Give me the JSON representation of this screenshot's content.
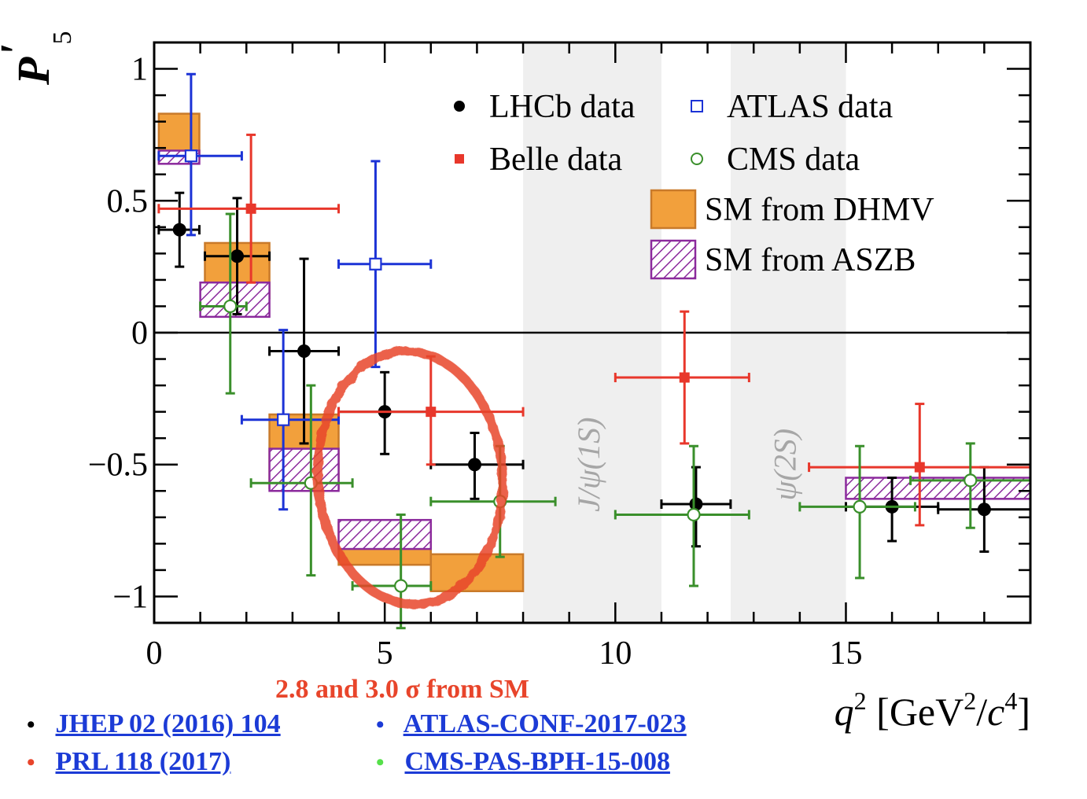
{
  "chart_data": {
    "type": "scatter",
    "title": "",
    "ylabel_main": "P",
    "ylabel_prime": "'",
    "ylabel_sub": "5",
    "xlabel_q": "q",
    "xlabel_sup": "2",
    "xlabel_unit_open": "[GeV",
    "xlabel_unit_sup": "2",
    "xlabel_unit_mid": "/",
    "xlabel_unit_c": "c",
    "xlabel_unit_sup2": "4",
    "xlabel_unit_close": "]",
    "xlim": [
      0,
      19
    ],
    "ylim": [
      -1.1,
      1.1
    ],
    "x_ticks": [
      {
        "value": 0,
        "label": "0"
      },
      {
        "value": 5,
        "label": "5"
      },
      {
        "value": 10,
        "label": "10"
      },
      {
        "value": 15,
        "label": "15"
      }
    ],
    "y_ticks": [
      {
        "value": 1,
        "label": "1"
      },
      {
        "value": 0.5,
        "label": "0.5"
      },
      {
        "value": 0,
        "label": "0"
      },
      {
        "value": -0.5,
        "label": "−0.5"
      },
      {
        "value": -1,
        "label": "−1"
      }
    ],
    "vetoed_regions": [
      {
        "x0": 8.0,
        "x1": 11.0,
        "label": "J/ψ(1S)",
        "label_x": 9.5,
        "label_y": -0.5
      },
      {
        "x0": 12.5,
        "x1": 15.0,
        "label": "ψ(2S)",
        "label_x": 13.75,
        "label_y": -0.5
      }
    ],
    "zero_line": 0,
    "series": [
      {
        "name": "LHCb data",
        "marker": "filled-circle",
        "color": "#000000",
        "points": [
          {
            "x": 0.55,
            "xlo": 0.1,
            "xhi": 0.98,
            "y": 0.39,
            "ylo": 0.25,
            "yhi": 0.53
          },
          {
            "x": 1.8,
            "xlo": 1.1,
            "xhi": 2.5,
            "y": 0.29,
            "ylo": 0.07,
            "yhi": 0.51
          },
          {
            "x": 3.25,
            "xlo": 2.5,
            "xhi": 4.0,
            "y": -0.07,
            "ylo": -0.42,
            "yhi": 0.28
          },
          {
            "x": 5.0,
            "xlo": 4.0,
            "xhi": 6.0,
            "y": -0.3,
            "ylo": -0.46,
            "yhi": -0.15
          },
          {
            "x": 6.95,
            "xlo": 6.0,
            "xhi": 8.0,
            "y": -0.5,
            "ylo": -0.63,
            "yhi": -0.38
          },
          {
            "x": 11.75,
            "xlo": 11.0,
            "xhi": 12.5,
            "y": -0.65,
            "ylo": -0.81,
            "yhi": -0.51
          },
          {
            "x": 16.0,
            "xlo": 15.0,
            "xhi": 17.0,
            "y": -0.66,
            "ylo": -0.79,
            "yhi": -0.55
          },
          {
            "x": 18.0,
            "xlo": 17.0,
            "xhi": 19.0,
            "y": -0.67,
            "ylo": -0.83,
            "yhi": -0.51
          }
        ]
      },
      {
        "name": "ATLAS data",
        "marker": "open-square",
        "color": "#1c33d6",
        "points": [
          {
            "x": 0.8,
            "xlo": 0.1,
            "xhi": 1.9,
            "y": 0.67,
            "ylo": 0.37,
            "yhi": 0.98
          },
          {
            "x": 2.8,
            "xlo": 1.9,
            "xhi": 4.0,
            "y": -0.33,
            "ylo": -0.67,
            "yhi": 0.01
          },
          {
            "x": 4.8,
            "xlo": 4.0,
            "xhi": 6.0,
            "y": 0.26,
            "ylo": -0.13,
            "yhi": 0.65
          }
        ]
      },
      {
        "name": "Belle data",
        "marker": "filled-square",
        "color": "#e8372b",
        "points": [
          {
            "x": 2.1,
            "xlo": 0.1,
            "xhi": 4.0,
            "y": 0.47,
            "ylo": 0.19,
            "yhi": 0.75
          },
          {
            "x": 6.0,
            "xlo": 4.0,
            "xhi": 8.0,
            "y": -0.3,
            "ylo": -0.5,
            "yhi": -0.09
          },
          {
            "x": 11.5,
            "xlo": 10.0,
            "xhi": 12.9,
            "y": -0.17,
            "ylo": -0.42,
            "yhi": 0.08
          },
          {
            "x": 16.6,
            "xlo": 14.2,
            "xhi": 19.0,
            "y": -0.51,
            "ylo": -0.73,
            "yhi": -0.27
          }
        ]
      },
      {
        "name": "CMS data",
        "marker": "open-circle",
        "color": "#3a8f2b",
        "points": [
          {
            "x": 1.65,
            "xlo": 1.0,
            "xhi": 2.0,
            "y": 0.1,
            "ylo": -0.23,
            "yhi": 0.45
          },
          {
            "x": 3.4,
            "xlo": 2.1,
            "xhi": 4.3,
            "y": -0.57,
            "ylo": -0.92,
            "yhi": -0.2
          },
          {
            "x": 5.35,
            "xlo": 4.3,
            "xhi": 6.0,
            "y": -0.96,
            "ylo": -1.12,
            "yhi": -0.69
          },
          {
            "x": 7.5,
            "xlo": 6.0,
            "xhi": 8.7,
            "y": -0.64,
            "ylo": -0.85,
            "yhi": -0.43
          },
          {
            "x": 11.7,
            "xlo": 10.0,
            "xhi": 12.9,
            "y": -0.69,
            "ylo": -0.96,
            "yhi": -0.43
          },
          {
            "x": 15.3,
            "xlo": 14.0,
            "xhi": 16.5,
            "y": -0.66,
            "ylo": -0.93,
            "yhi": -0.43
          },
          {
            "x": 17.7,
            "xlo": 16.4,
            "xhi": 19.0,
            "y": -0.56,
            "ylo": -0.74,
            "yhi": -0.42
          }
        ]
      }
    ],
    "sm_bands": [
      {
        "name": "SM from DHMV",
        "style": "orange-box",
        "color": "#f2a03c",
        "edge": "#c97a2a",
        "bins": [
          {
            "x0": 0.1,
            "x1": 0.98,
            "y0": 0.66,
            "y1": 0.83
          },
          {
            "x0": 1.1,
            "x1": 2.5,
            "y0": 0.13,
            "y1": 0.34
          },
          {
            "x0": 2.5,
            "x1": 4.0,
            "y0": -0.59,
            "y1": -0.31
          },
          {
            "x0": 4.0,
            "x1": 6.0,
            "y0": -0.88,
            "y1": -0.72
          },
          {
            "x0": 6.0,
            "x1": 8.0,
            "y0": -0.98,
            "y1": -0.84
          }
        ]
      },
      {
        "name": "SM from ASZB",
        "style": "purple-hatch",
        "color": "#8b2a9c",
        "edge": "#8b2a9c",
        "bins": [
          {
            "x0": 0.1,
            "x1": 0.98,
            "y0": 0.64,
            "y1": 0.69
          },
          {
            "x0": 1.0,
            "x1": 2.5,
            "y0": 0.06,
            "y1": 0.19
          },
          {
            "x0": 2.5,
            "x1": 4.0,
            "y0": -0.6,
            "y1": -0.44
          },
          {
            "x0": 4.0,
            "x1": 6.0,
            "y0": -0.82,
            "y1": -0.71
          },
          {
            "x0": 15.0,
            "x1": 19.0,
            "y0": -0.63,
            "y1": -0.55
          }
        ]
      }
    ],
    "legend": {
      "placement": "top-right",
      "entries": [
        "LHCb data",
        "ATLAS data",
        "Belle data",
        "CMS data",
        "SM from DHMV",
        "SM from ASZB"
      ]
    },
    "highlight": {
      "shape": "red-ellipse",
      "cx": 5.55,
      "cy": -0.55,
      "rx": 2.0,
      "ry": 0.48,
      "color": "#e8452b"
    }
  },
  "annotation": "2.8 and 3.0 σ from SM",
  "references": [
    {
      "bullet_color": "#000000",
      "text": "JHEP 02 (2016) 104"
    },
    {
      "bullet_color": "#e8452b",
      "text": "PRL 118 (2017)"
    },
    {
      "bullet_color": "#1c3bd6",
      "text": "ATLAS-CONF-2017-023"
    },
    {
      "bullet_color": "#56e04a",
      "text": "CMS-PAS-BPH-15-008"
    }
  ]
}
